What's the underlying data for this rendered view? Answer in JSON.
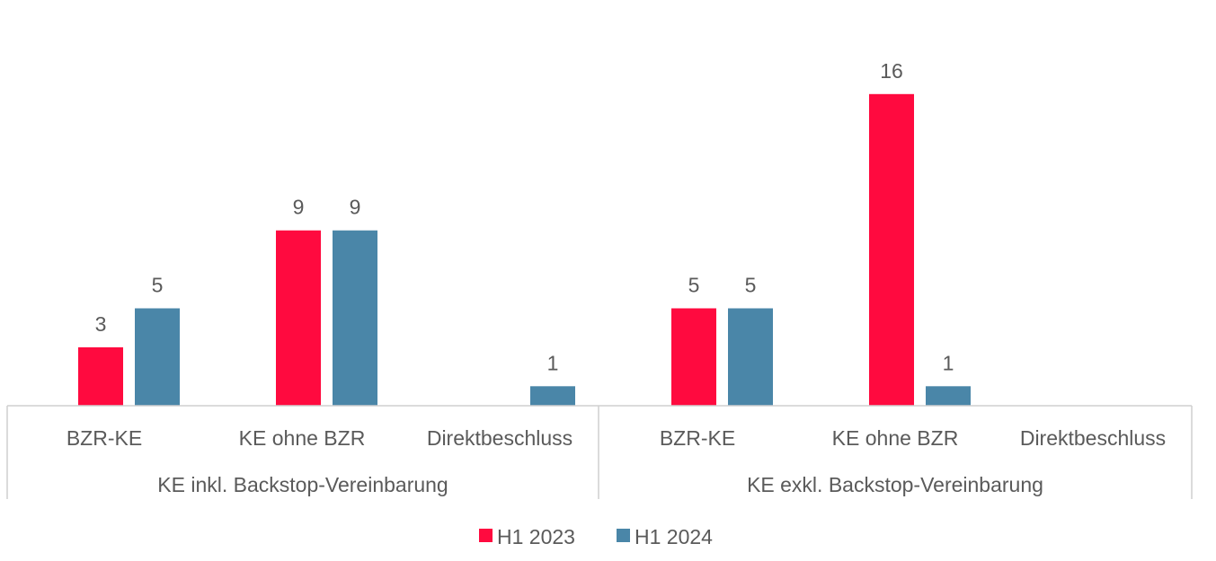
{
  "chart_data": {
    "type": "bar",
    "groups": [
      {
        "label": "KE inkl. Backstop-Vereinbarung",
        "categories": [
          "BZR-KE",
          "KE ohne BZR",
          "Direktbeschluss"
        ],
        "series": [
          {
            "name": "H1 2023",
            "values": [
              3,
              9,
              null
            ]
          },
          {
            "name": "H1 2024",
            "values": [
              5,
              9,
              1
            ]
          }
        ]
      },
      {
        "label": "KE exkl. Backstop-Vereinbarung",
        "categories": [
          "BZR-KE",
          "KE ohne BZR",
          "Direktbeschluss"
        ],
        "series": [
          {
            "name": "H1 2023",
            "values": [
              5,
              16,
              null
            ]
          },
          {
            "name": "H1 2024",
            "values": [
              5,
              1,
              null
            ]
          }
        ]
      }
    ],
    "legend": {
      "position": "bottom",
      "entries": [
        {
          "name": "H1 2023",
          "color": "#ff0a3f"
        },
        {
          "name": "H1 2024",
          "color": "#4a86a8"
        }
      ]
    },
    "ylim": [
      0,
      16
    ],
    "grid": false
  }
}
